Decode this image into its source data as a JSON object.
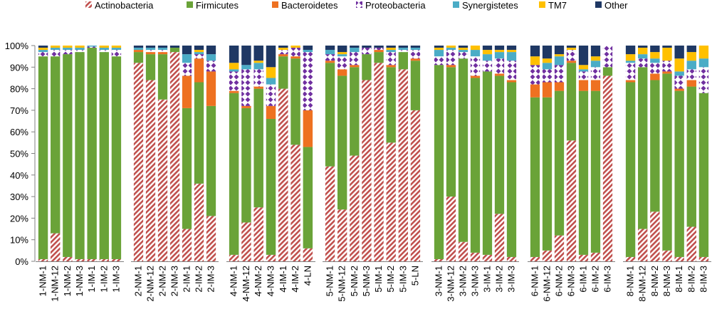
{
  "chart_data": {
    "type": "bar",
    "stacked": true,
    "percent": true,
    "title": "",
    "xlabel": "",
    "ylabel": "",
    "ylim": [
      0,
      100
    ],
    "yticks": [
      "0%",
      "10%",
      "20%",
      "30%",
      "40%",
      "50%",
      "60%",
      "70%",
      "80%",
      "90%",
      "100%"
    ],
    "legend_position": "top",
    "series": [
      {
        "name": "Actinobacteria",
        "color": "#c0504d",
        "pattern": "diagonal-hatch"
      },
      {
        "name": "Firmicutes",
        "color": "#6aa338"
      },
      {
        "name": "Bacteroidetes",
        "color": "#ee7121"
      },
      {
        "name": "Proteobacteria",
        "color": "#7030a0",
        "pattern": "diamond"
      },
      {
        "name": "Synergistetes",
        "color": "#4bacc6"
      },
      {
        "name": "TM7",
        "color": "#ffc000"
      },
      {
        "name": "Other",
        "color": "#1f3864"
      }
    ],
    "groups": [
      {
        "bars": [
          {
            "label": "1-NM-1",
            "values": [
              1,
              94,
              0,
              2,
              1,
              1,
              1
            ]
          },
          {
            "label": "1-NM-12",
            "values": [
              13,
              82,
              0,
              3,
              1,
              1,
              0
            ]
          },
          {
            "label": "1-NM-2",
            "values": [
              2,
              94,
              0,
              2,
              1,
              1,
              0
            ]
          },
          {
            "label": "1-NM-3",
            "values": [
              1,
              96,
              0,
              1,
              1,
              1,
              0
            ]
          },
          {
            "label": "1-IM-1",
            "values": [
              1,
              98,
              0,
              0.5,
              0.5,
              0,
              0
            ]
          },
          {
            "label": "1-IM-2",
            "values": [
              1,
              96,
              0,
              1,
              1,
              1,
              0
            ]
          },
          {
            "label": "1-IM-3",
            "values": [
              1,
              94,
              0,
              3,
              1,
              1,
              0
            ]
          }
        ]
      },
      {
        "bars": [
          {
            "label": "2-NM-1",
            "values": [
              92,
              5,
              1,
              0,
              1,
              0,
              1
            ]
          },
          {
            "label": "2-NM-12",
            "values": [
              84,
              12,
              1,
              1,
              1,
              0,
              1
            ]
          },
          {
            "label": "2-NM-2",
            "values": [
              75,
              21,
              1,
              1,
              1,
              0,
              1
            ]
          },
          {
            "label": "2-NM-3",
            "values": [
              97,
              2,
              0,
              0,
              0,
              0,
              1
            ]
          },
          {
            "label": "2-IM-1",
            "values": [
              15,
              56,
              15,
              6,
              4,
              0,
              4
            ]
          },
          {
            "label": "2-IM-2",
            "values": [
              36,
              47,
              11,
              2,
              1,
              1,
              2
            ]
          },
          {
            "label": "2-IM-3",
            "values": [
              21,
              51,
              16,
              5,
              3,
              0,
              4
            ]
          }
        ]
      },
      {
        "bars": [
          {
            "label": "4-NM-1",
            "values": [
              3,
              75,
              1,
              9,
              1,
              3,
              8
            ]
          },
          {
            "label": "4-NM-12",
            "values": [
              18,
              53,
              1,
              17,
              2,
              0,
              9
            ]
          },
          {
            "label": "4-NM-2",
            "values": [
              25,
              55,
              1,
              8,
              3,
              1,
              7
            ]
          },
          {
            "label": "4-NM-3",
            "values": [
              3,
              63,
              6,
              10,
              3,
              5,
              10
            ]
          },
          {
            "label": "4-IM-1",
            "values": [
              80,
              15,
              1,
              2,
              0,
              1,
              1
            ]
          },
          {
            "label": "4-IM-2",
            "values": [
              54,
              40,
              1,
              4,
              0,
              1,
              0
            ]
          },
          {
            "label": "4-LN",
            "values": [
              6,
              47,
              17,
              27,
              1,
              0,
              2
            ]
          }
        ]
      },
      {
        "bars": [
          {
            "label": "5-NM-1",
            "values": [
              44,
              48,
              1,
              3,
              2,
              0,
              2
            ]
          },
          {
            "label": "5-NM-12",
            "values": [
              24,
              62,
              3,
              6,
              1,
              1,
              3
            ]
          },
          {
            "label": "5-NM-2",
            "values": [
              49,
              41,
              1,
              6,
              2,
              0,
              1
            ]
          },
          {
            "label": "5-NM-3",
            "values": [
              84,
              12,
              0,
              3,
              0,
              0,
              1
            ]
          },
          {
            "label": "5-IM-1",
            "values": [
              92,
              5,
              1,
              1,
              0,
              0,
              1
            ]
          },
          {
            "label": "5-IM-2",
            "values": [
              55,
              35,
              1,
              6,
              1,
              1,
              1
            ]
          },
          {
            "label": "5-IM-3",
            "values": [
              89,
              8,
              0,
              1,
              1,
              0,
              1
            ]
          },
          {
            "label": "5-LN",
            "values": [
              70,
              23,
              1,
              4,
              1,
              0,
              1
            ]
          }
        ]
      },
      {
        "bars": [
          {
            "label": "3-NM-1",
            "values": [
              1,
              90,
              0,
              4,
              3,
              1,
              1
            ]
          },
          {
            "label": "3-NM-12",
            "values": [
              30,
              60,
              1,
              7,
              1,
              1,
              0
            ]
          },
          {
            "label": "3-NM-2",
            "values": [
              9,
              85,
              0,
              3,
              1,
              1,
              1
            ]
          },
          {
            "label": "3-NM-3",
            "values": [
              4,
              81,
              1,
              9,
              3,
              2,
              0
            ]
          },
          {
            "label": "3-IM-1",
            "values": [
              3,
              85,
              0,
              5,
              3,
              2,
              2
            ]
          },
          {
            "label": "3-IM-2",
            "values": [
              22,
              64,
              1,
              7,
              3,
              1,
              2
            ]
          },
          {
            "label": "3-IM-3",
            "values": [
              2,
              81,
              1,
              9,
              4,
              1,
              2
            ]
          }
        ]
      },
      {
        "bars": [
          {
            "label": "6-NM-1",
            "values": [
              2,
              74,
              6,
              9,
              0,
              4,
              5
            ]
          },
          {
            "label": "6-NM-12",
            "values": [
              5,
              71,
              7,
              6,
              3,
              2,
              6
            ]
          },
          {
            "label": "6-NM-2",
            "values": [
              12,
              67,
              4,
              8,
              4,
              1,
              4
            ]
          },
          {
            "label": "6-NM-3",
            "values": [
              56,
              36,
              1,
              5,
              0,
              1,
              1
            ]
          },
          {
            "label": "6-IM-1",
            "values": [
              3,
              76,
              5,
              4,
              1,
              2,
              9
            ]
          },
          {
            "label": "6-IM-2",
            "values": [
              4,
              75,
              5,
              6,
              3,
              2,
              5
            ]
          },
          {
            "label": "6-IM-3",
            "values": [
              86,
              4,
              0,
              10,
              0,
              0,
              0
            ]
          }
        ]
      },
      {
        "bars": [
          {
            "label": "8-NM-1",
            "values": [
              2,
              81,
              1,
              8,
              1,
              3,
              4
            ]
          },
          {
            "label": "8-NM-12",
            "values": [
              15,
              75,
              0,
              4,
              2,
              3,
              1
            ]
          },
          {
            "label": "8-NM-2",
            "values": [
              23,
              61,
              3,
              5,
              2,
              3,
              3
            ]
          },
          {
            "label": "8-NM-3",
            "values": [
              5,
              82,
              1,
              5,
              0,
              6,
              1
            ]
          },
          {
            "label": "8-IM-1",
            "values": [
              2,
              77,
              1,
              6,
              2,
              6,
              6
            ]
          },
          {
            "label": "8-IM-2",
            "values": [
              16,
              65,
              3,
              5,
              4,
              4,
              3
            ]
          },
          {
            "label": "8-IM-3",
            "values": [
              2,
              76,
              0,
              12,
              4,
              6,
              0
            ]
          }
        ]
      }
    ]
  }
}
